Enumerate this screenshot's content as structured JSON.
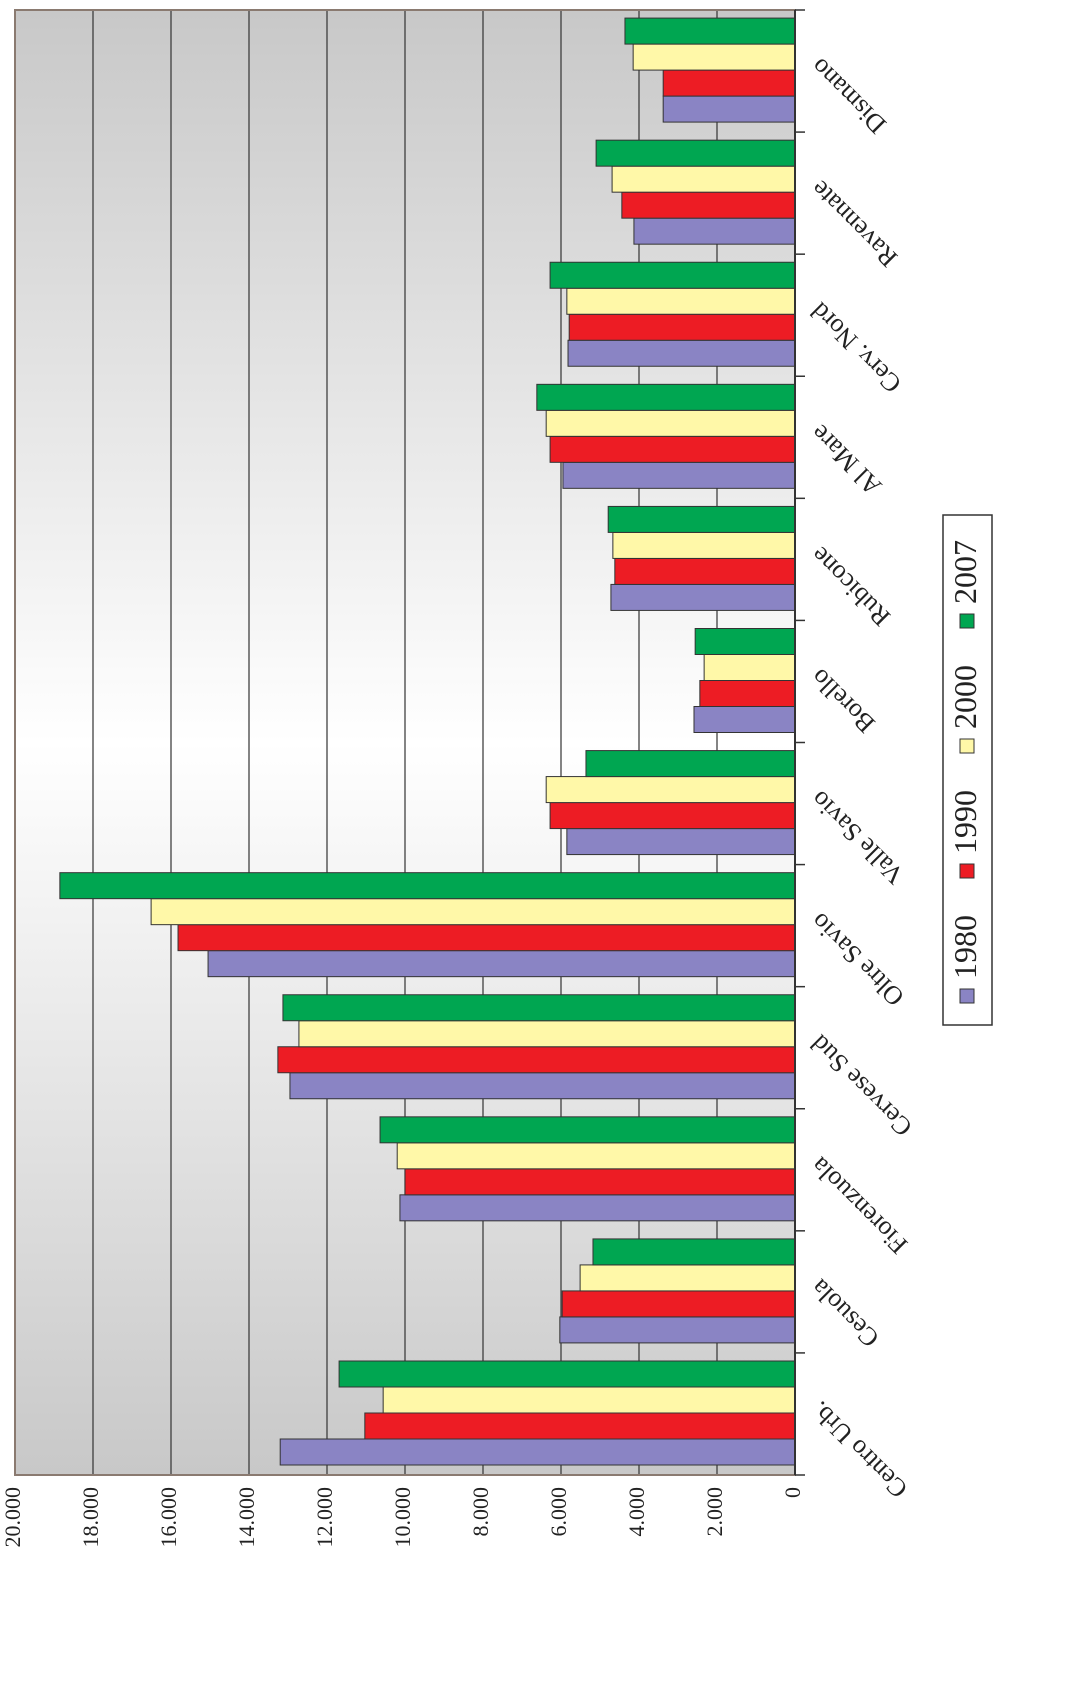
{
  "chart_data": {
    "type": "bar",
    "categories": [
      "Centro Urb.",
      "Cesuola",
      "Fiorenzuola",
      "Cervese Sud",
      "Oltre Savio",
      "Valle Savio",
      "Borello",
      "Rubicone",
      "Al Mare",
      "Cerv. Nord",
      "Ravennate",
      "Dismano"
    ],
    "series": [
      {
        "name": "1980",
        "color": "#8a84c4",
        "values": [
          13200,
          6030,
          10130,
          12950,
          15050,
          5850,
          2590,
          4720,
          5950,
          5820,
          4130,
          3380
        ]
      },
      {
        "name": "1990",
        "color": "#ed1c24",
        "values": [
          11030,
          5970,
          10000,
          13260,
          15820,
          6280,
          2440,
          4620,
          6280,
          5790,
          4440,
          3380
        ]
      },
      {
        "name": "2000",
        "color": "#fff8a8",
        "values": [
          10560,
          5510,
          10200,
          12720,
          16510,
          6380,
          2330,
          4670,
          6380,
          5850,
          4690,
          4150
        ]
      },
      {
        "name": "2007",
        "color": "#00a651",
        "values": [
          11690,
          5180,
          10640,
          13130,
          18850,
          5360,
          2560,
          4790,
          6620,
          6280,
          5100,
          4360
        ]
      }
    ],
    "ylim": [
      0,
      20000
    ],
    "yticks": [
      0,
      {
        "value": 2000,
        "label": "2.000"
      },
      {
        "value": 4000,
        "label": "4.000"
      },
      {
        "value": 6000,
        "label": "6.000"
      },
      {
        "value": 8000,
        "label": "8.000"
      },
      {
        "value": 10000,
        "label": "10.000"
      },
      {
        "value": 12000,
        "label": "12.000"
      },
      {
        "value": 14000,
        "label": "14.000"
      },
      {
        "value": 16000,
        "label": "16.000"
      },
      {
        "value": 18000,
        "label": "18.000"
      },
      {
        "value": 20000,
        "label": "20.000"
      }
    ],
    "grid": true
  }
}
